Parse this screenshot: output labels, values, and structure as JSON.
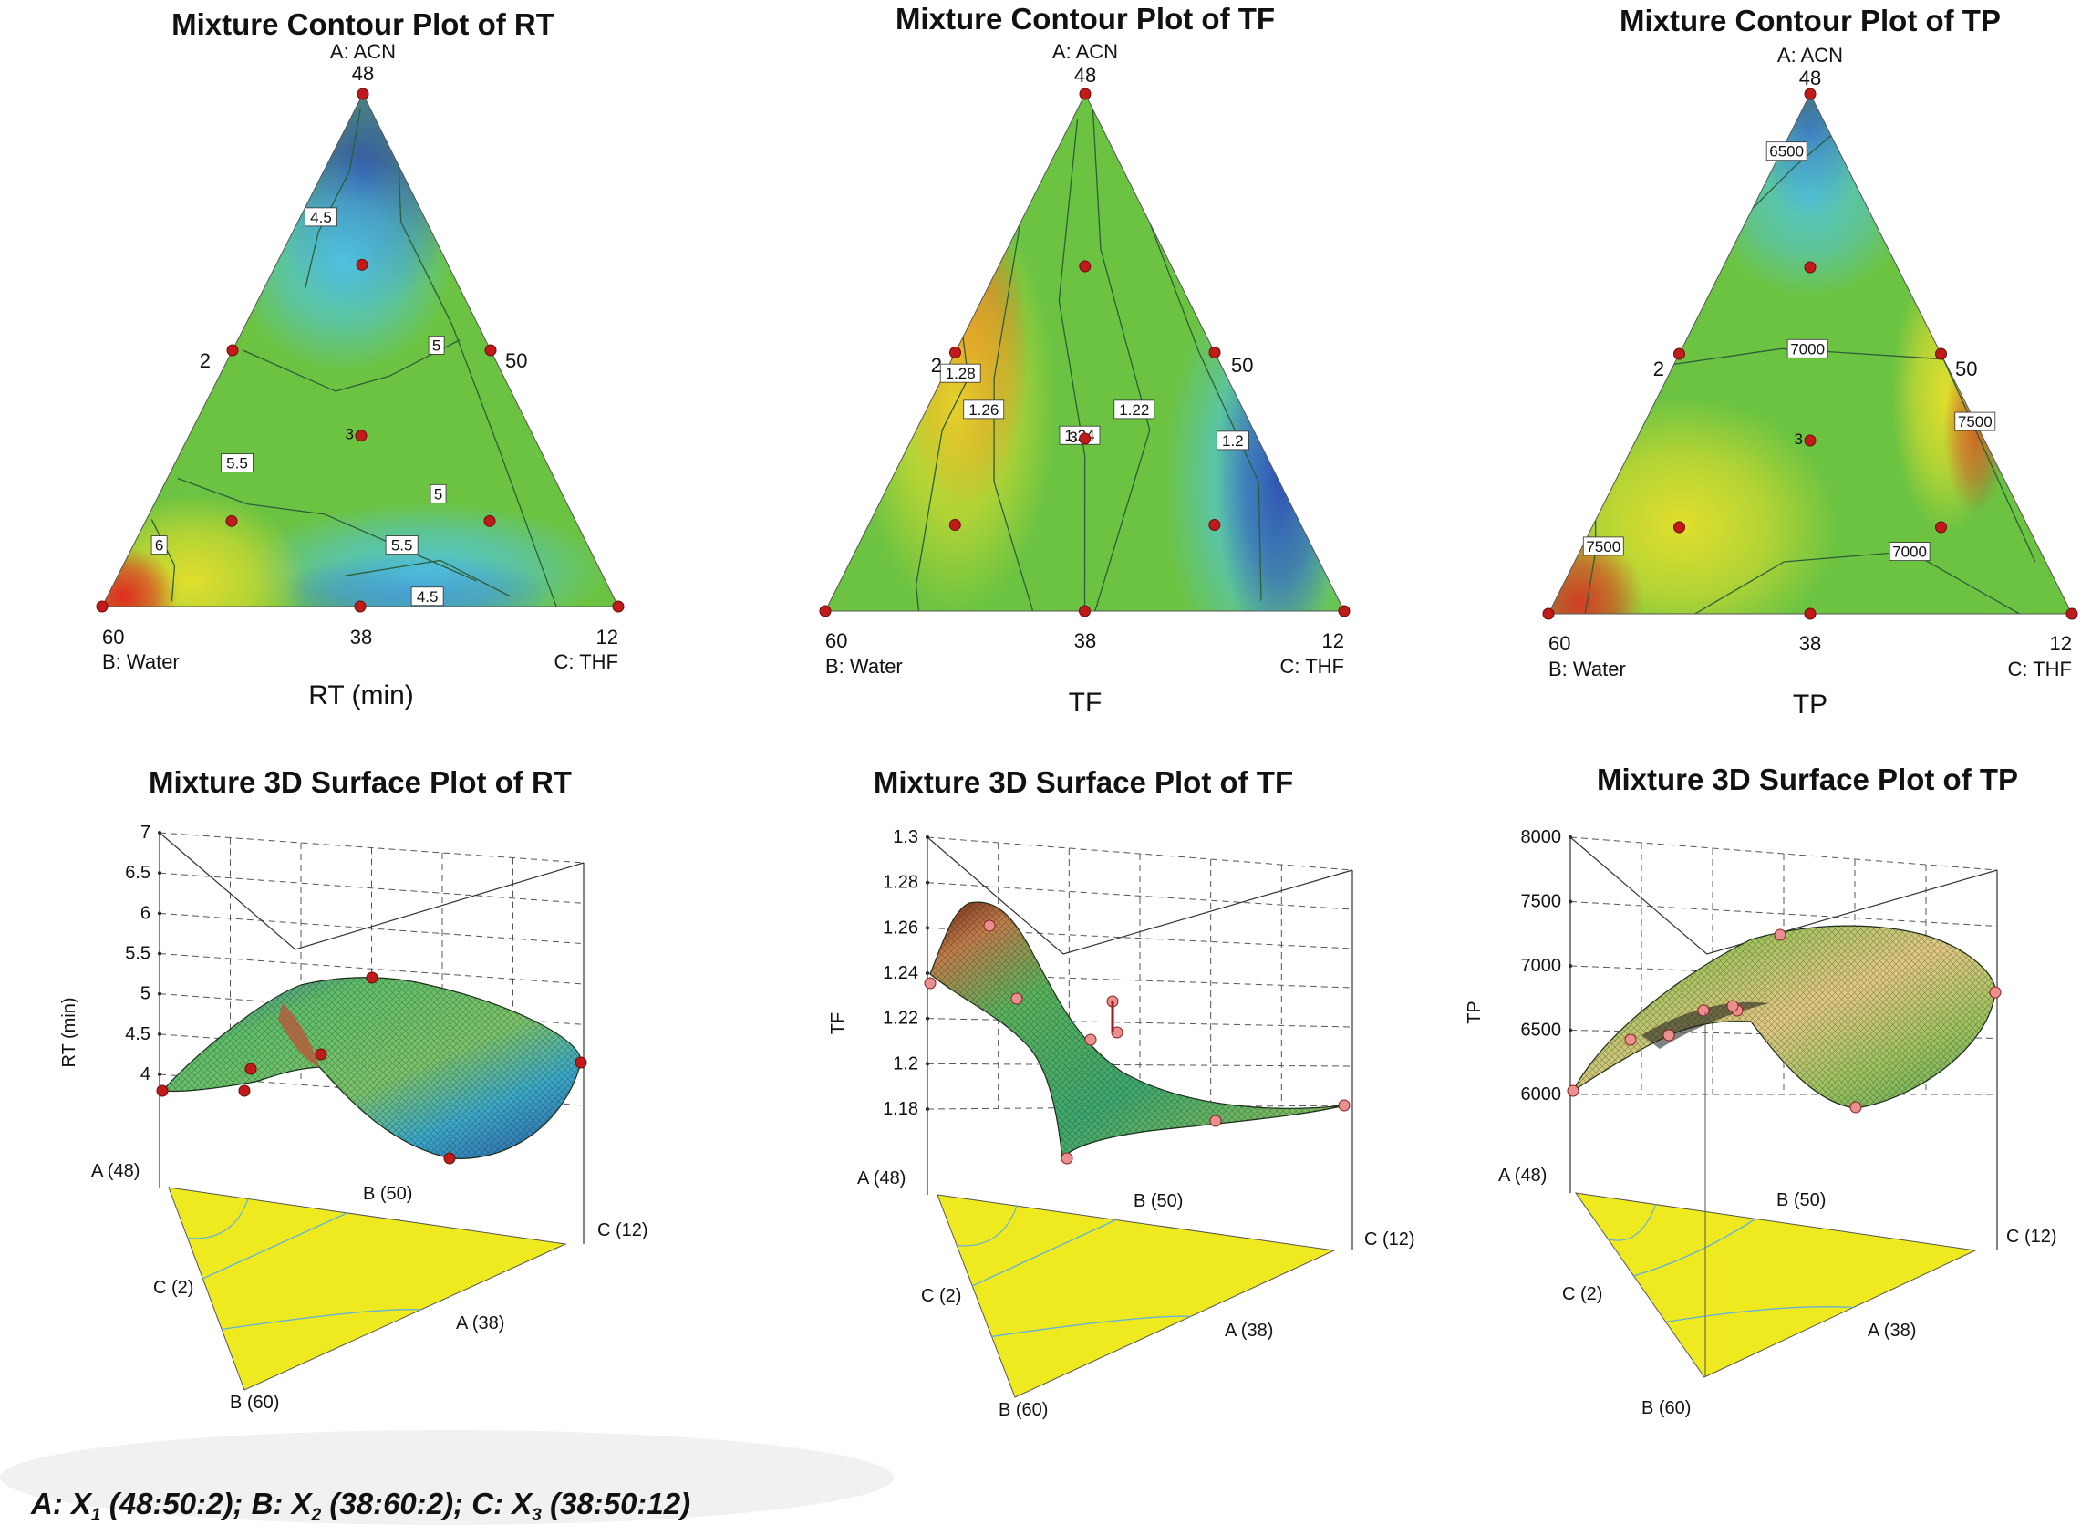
{
  "colors": {
    "contour_min": "#2f4fb0",
    "contour_low": "#4fc6ec",
    "contour_mid": "#6cc342",
    "contour_high": "#e8e02c",
    "contour_max": "#e3231e",
    "design_point": "#c01a1a",
    "design_point_light": "#e98f8f",
    "base_triangle": "#eeea1f"
  },
  "footnote": {
    "a_prefix": "A: X",
    "a_sub": "1",
    "a_rest": " (48:50:2);",
    "b_prefix": " B: X",
    "b_sub": "2",
    "b_rest": " (38:60:2);",
    "c_prefix": " C: X",
    "c_sub": "3",
    "c_rest": " (38:50:12)"
  },
  "chart_data": [
    {
      "type": "ternary-contour",
      "title": "Mixture Contour Plot of RT",
      "xlabel": "RT (min)",
      "vertices": {
        "top_label": "A: ACN",
        "top_value": "48",
        "left_label": "B: Water",
        "left_value": "60",
        "right_label": "C: THF",
        "right_value": "12"
      },
      "edge_labels": {
        "left": "2",
        "right": "50",
        "bottom": "38"
      },
      "center_label": "3",
      "contour_labels": [
        "4.5",
        "5",
        "5.5",
        "6",
        "5.5",
        "5",
        "4.5"
      ],
      "design_points": [
        "A: ACN",
        "B: Water",
        "C: THF",
        "AB midpoint",
        "AC midpoint",
        "BC midpoint",
        "centroid",
        "A-axial",
        "B-axial",
        "C-axial"
      ]
    },
    {
      "type": "ternary-contour",
      "title": "Mixture Contour Plot of TF",
      "xlabel": "TF",
      "vertices": {
        "top_label": "A: ACN",
        "top_value": "48",
        "left_label": "B: Water",
        "left_value": "60",
        "right_label": "C: THF",
        "right_value": "12"
      },
      "edge_labels": {
        "left": "2",
        "right": "50",
        "bottom": "38"
      },
      "center_label": "3",
      "contour_labels": [
        "1.28",
        "1.26",
        "1.24",
        "1.22",
        "1.2"
      ],
      "design_points": [
        "A: ACN",
        "B: Water",
        "C: THF",
        "AB midpoint",
        "AC midpoint",
        "BC midpoint",
        "centroid",
        "A-axial",
        "B-axial",
        "C-axial"
      ]
    },
    {
      "type": "ternary-contour",
      "title": "Mixture Contour Plot of TP",
      "xlabel": "TP",
      "vertices": {
        "top_label": "A: ACN",
        "top_value": "48",
        "left_label": "B: Water",
        "left_value": "60",
        "right_label": "C: THF",
        "right_value": "12"
      },
      "edge_labels": {
        "left": "2",
        "right": "50",
        "bottom": "38"
      },
      "center_label": "3",
      "contour_labels": [
        "6500",
        "7000",
        "7500",
        "7500",
        "7000"
      ],
      "design_points": [
        "A: ACN",
        "B: Water",
        "C: THF",
        "AB midpoint",
        "AC midpoint",
        "BC midpoint",
        "centroid",
        "A-axial",
        "B-axial",
        "C-axial"
      ]
    },
    {
      "type": "surface-3d",
      "title": "Mixture 3D Surface Plot of RT",
      "zlabel": "RT (min)",
      "z_ticks": [
        "4",
        "4.5",
        "5",
        "5.5",
        "6",
        "6.5",
        "7"
      ],
      "zlim": [
        4,
        7
      ],
      "axis_labels": {
        "a_top": "A (48)",
        "b_top": "B (50)",
        "c_top": "C (12)",
        "c_low": "C (2)",
        "a_low": "A (38)",
        "b_low": "B (60)"
      }
    },
    {
      "type": "surface-3d",
      "title": "Mixture 3D Surface Plot of TF",
      "zlabel": "TF",
      "z_ticks": [
        "1.18",
        "1.2",
        "1.22",
        "1.24",
        "1.26",
        "1.28",
        "1.3"
      ],
      "zlim": [
        1.18,
        1.3
      ],
      "axis_labels": {
        "a_top": "A (48)",
        "b_top": "B (50)",
        "c_top": "C (12)",
        "c_low": "C (2)",
        "a_low": "A (38)",
        "b_low": "B (60)"
      }
    },
    {
      "type": "surface-3d",
      "title": "Mixture 3D Surface Plot of TP",
      "zlabel": "TP",
      "z_ticks": [
        "6000",
        "6500",
        "7000",
        "7500",
        "8000"
      ],
      "zlim": [
        6000,
        8000
      ],
      "axis_labels": {
        "a_top": "A (48)",
        "b_top": "B (50)",
        "c_top": "C (12)",
        "c_low": "C (2)",
        "a_low": "A (38)",
        "b_low": "B (60)"
      }
    }
  ]
}
